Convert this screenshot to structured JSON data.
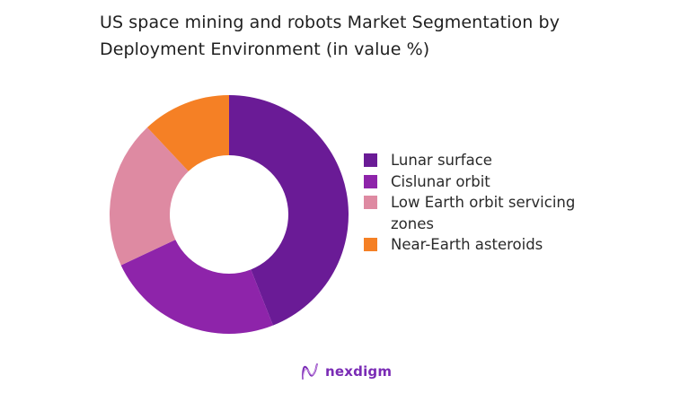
{
  "chart_data": {
    "type": "pie",
    "subtype": "donut",
    "title": "US space mining and robots Market Segmentation by Deployment Environment (in value %)",
    "categories": [
      "Lunar surface",
      "Cislunar orbit",
      "Low Earth orbit servicing zones",
      "Near-Earth asteroids"
    ],
    "values": [
      44,
      24,
      20,
      12
    ],
    "colors": [
      "#6a1b96",
      "#8e24aa",
      "#de8aa2",
      "#f58025"
    ],
    "start_angle": "top, clockwise",
    "legend_position": "right"
  },
  "title": {
    "line1": "US space mining and robots Market Segmentation by",
    "line2": "Deployment Environment (in value %)"
  },
  "legend": {
    "items": [
      {
        "label": "Lunar surface",
        "color": "#6a1b96"
      },
      {
        "label": "Cislunar orbit",
        "color": "#8e24aa"
      },
      {
        "label": "Low Earth orbit servicing zones",
        "color": "#de8aa2"
      },
      {
        "label": "Near-Earth asteroids",
        "color": "#f58025"
      }
    ]
  },
  "footer": {
    "brand": "nexdigm"
  }
}
